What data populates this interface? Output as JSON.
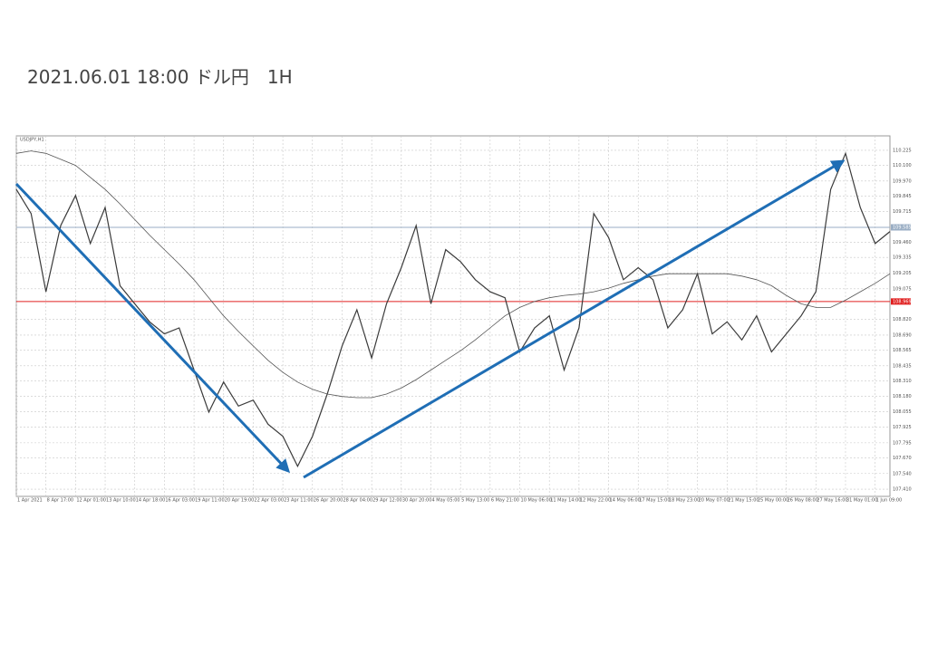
{
  "title": "2021.06.01 18:00 ドル円　1H",
  "chart_data": {
    "type": "line",
    "symbol_label": "USDJPY,H1",
    "categories": [
      "1 Apr 2021",
      null,
      "8 Apr 17:00",
      null,
      "12 Apr 01:00",
      null,
      "13 Apr 10:00",
      null,
      "14 Apr 18:00",
      null,
      "16 Apr 03:00",
      null,
      "19 Apr 11:00",
      null,
      "20 Apr 19:00",
      null,
      "22 Apr 03:00",
      null,
      "23 Apr 11:00",
      null,
      "26 Apr 20:00",
      null,
      "28 Apr 04:00",
      null,
      "29 Apr 12:00",
      null,
      "30 Apr 20:00",
      null,
      "4 May 05:00",
      null,
      "5 May 13:00",
      null,
      "6 May 21:00",
      null,
      "10 May 06:00",
      null,
      "11 May 14:00",
      null,
      "12 May 22:00",
      null,
      "14 May 06:00",
      null,
      "17 May 15:00",
      null,
      "18 May 23:00",
      null,
      "20 May 07:00",
      null,
      "21 May 15:00",
      null,
      "25 May 00:00",
      null,
      "26 May 08:00",
      null,
      "27 May 16:00",
      null,
      "31 May 01:00",
      null,
      "1 Jun 09:00",
      null
    ],
    "series": [
      {
        "color": "#3a3a3a",
        "values": [
          109.9,
          109.7,
          109.05,
          109.6,
          109.85,
          109.45,
          109.75,
          109.1,
          108.95,
          108.8,
          108.7,
          108.75,
          108.4,
          108.05,
          108.3,
          108.1,
          108.15,
          107.95,
          107.85,
          107.6,
          107.85,
          108.2,
          108.6,
          108.9,
          108.5,
          108.95,
          109.25,
          109.6,
          108.95,
          109.4,
          109.3,
          109.15,
          109.05,
          109.0,
          108.55,
          108.75,
          108.85,
          108.4,
          108.75,
          109.7,
          109.5,
          109.15,
          109.25,
          109.15,
          108.75,
          108.9,
          109.2,
          108.7,
          108.8,
          108.65,
          108.85,
          108.55,
          108.7,
          108.85,
          109.05,
          109.9,
          110.2,
          109.75,
          109.45,
          109.55
        ]
      },
      {
        "color": "#555555",
        "values": [
          110.2,
          110.22,
          110.2,
          110.15,
          110.1,
          110.0,
          109.9,
          109.78,
          109.65,
          109.52,
          109.4,
          109.28,
          109.15,
          109.0,
          108.85,
          108.72,
          108.6,
          108.48,
          108.38,
          108.3,
          108.24,
          108.2,
          108.18,
          108.17,
          108.17,
          108.2,
          108.25,
          108.32,
          108.4,
          108.48,
          108.56,
          108.65,
          108.75,
          108.85,
          108.92,
          108.97,
          109.0,
          109.02,
          109.03,
          109.05,
          109.08,
          109.12,
          109.15,
          109.18,
          109.2,
          109.2,
          109.2,
          109.2,
          109.2,
          109.18,
          109.15,
          109.1,
          109.02,
          108.95,
          108.92,
          108.92,
          108.98,
          109.05,
          109.12,
          109.2
        ]
      }
    ],
    "ylim": [
      107.35,
      110.345
    ],
    "yticks": [
      110.225,
      {
        "value": 110.1,
        "label": "110.100"
      },
      {
        "value": 109.97,
        "label": "109.970"
      },
      109.845,
      109.715,
      {
        "value": 109.46,
        "label": "109.460"
      },
      109.335,
      109.205,
      109.075,
      {
        "value": 108.82,
        "label": "108.820"
      },
      {
        "value": 108.69,
        "label": "108.690"
      },
      108.565,
      108.435,
      {
        "value": 108.31,
        "label": "108.310"
      },
      {
        "value": 108.18,
        "label": "108.180"
      },
      108.055,
      107.925,
      107.795,
      {
        "value": 107.67,
        "label": "107.670"
      },
      {
        "value": 107.54,
        "label": "107.540"
      },
      {
        "value": 107.41,
        "label": "107.410"
      }
    ],
    "hlines": [
      {
        "value": 109.585,
        "color": "#9aaec4"
      },
      {
        "value": 108.969,
        "color": "#e02020"
      }
    ],
    "grid": true
  }
}
